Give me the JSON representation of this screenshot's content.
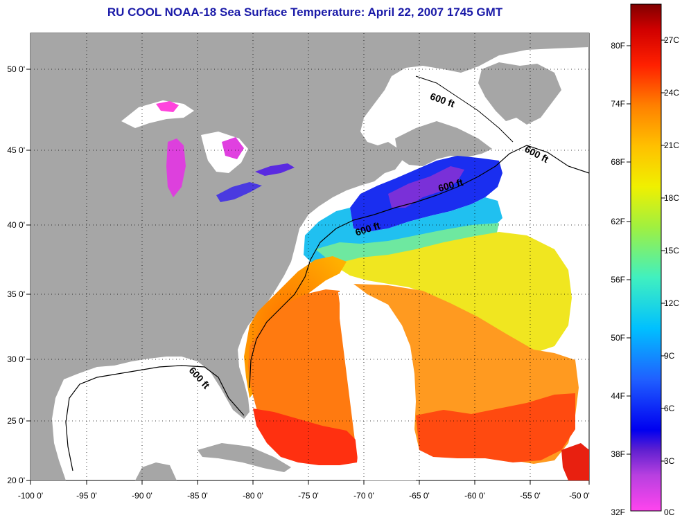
{
  "title": "RU COOL  NOAA-18  Sea Surface Temperature:  April 22, 2007 1745 GMT",
  "map": {
    "lon_labels": [
      "-100 0'",
      "-95 0'",
      "-90 0'",
      "-85 0'",
      "-80 0'",
      "-75 0'",
      "-70 0'",
      "-65 0'",
      "-60 0'",
      "-55 0'",
      "-50 0'"
    ],
    "lat_labels": [
      "50 0'",
      "45 0'",
      "40 0'",
      "35 0'",
      "30 0'",
      "25 0'",
      "20 0'"
    ],
    "isobath_labels": [
      "600 ft",
      "600 ft",
      "600 ft",
      "600 ft",
      "600 ft"
    ]
  },
  "colorbar": {
    "fahrenheit": [
      "80F",
      "74F",
      "68F",
      "62F",
      "56F",
      "50F",
      "44F",
      "38F",
      "32F"
    ],
    "celsius": [
      "27C",
      "24C",
      "21C",
      "18C",
      "15C",
      "12C",
      "9C",
      "6C",
      "3C",
      "0C"
    ]
  },
  "colors": {
    "land": "#a6a6a6",
    "ocean_no_data": "#ffffff",
    "title": "#1a1aa8"
  }
}
